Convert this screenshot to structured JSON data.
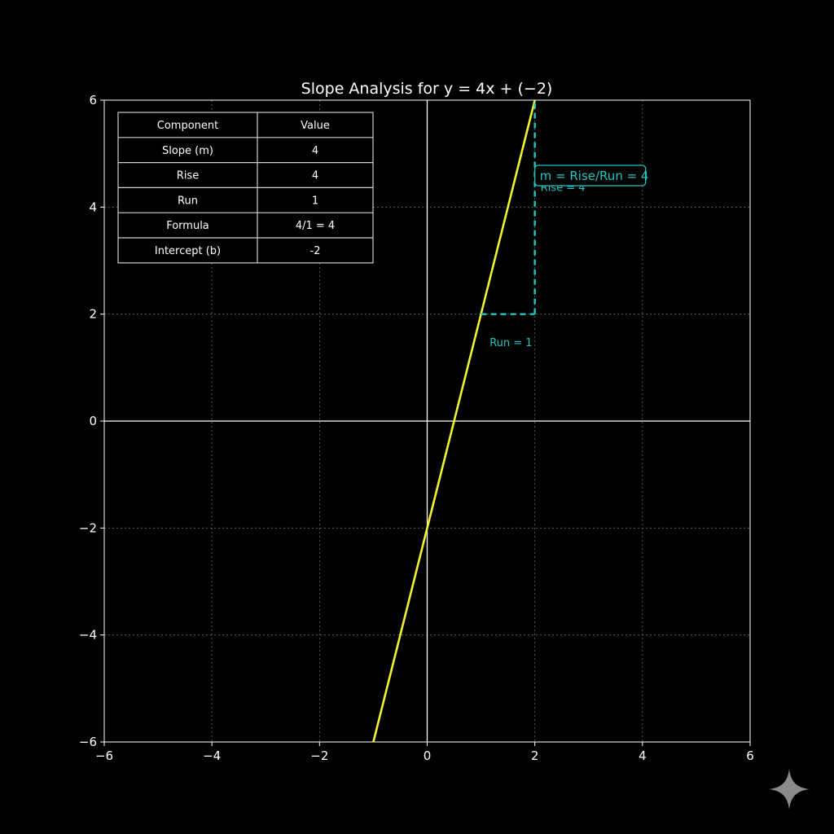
{
  "chart_data": {
    "type": "line",
    "title": "Slope Analysis for y = 4x + (−2)",
    "xlabel": "",
    "ylabel": "",
    "xlim": [
      -6,
      6
    ],
    "ylim": [
      -6,
      6
    ],
    "xticks": [
      -6,
      -4,
      -2,
      0,
      2,
      4,
      6
    ],
    "yticks": [
      -6,
      -4,
      -2,
      0,
      2,
      4,
      6
    ],
    "xtick_labels": [
      "−6",
      "−4",
      "−2",
      "0",
      "2",
      "4",
      "6"
    ],
    "ytick_labels": [
      "−6",
      "−4",
      "−2",
      "0",
      "2",
      "4",
      "6"
    ],
    "grid": true,
    "series": [
      {
        "x": [
          -1,
          2
        ],
        "y": [
          -6,
          6
        ],
        "color": "#f2f230"
      }
    ],
    "slope_triangle": {
      "run_from": [
        1,
        2
      ],
      "run_to": [
        2,
        2
      ],
      "rise_to": [
        2,
        6
      ],
      "color": "#22c4c4",
      "rise_label": "Rise = 4",
      "run_label": "Run = 1",
      "formula_label": "m = Rise/Run = 4"
    },
    "table": {
      "headers": [
        "Component",
        "Value"
      ],
      "rows": [
        [
          "Slope (m)",
          "4"
        ],
        [
          "Rise",
          "4"
        ],
        [
          "Run",
          "1"
        ],
        [
          "Formula",
          "4/1 = 4"
        ],
        [
          "Intercept (b)",
          "-2"
        ]
      ]
    }
  },
  "colors": {
    "background": "#000000",
    "axes": "#ffffff",
    "grid": "#6a6a6a",
    "line": "#f2f230",
    "accent": "#22c4c4",
    "text": "#ffffff"
  },
  "watermark": {
    "icon": "sparkle-icon"
  }
}
